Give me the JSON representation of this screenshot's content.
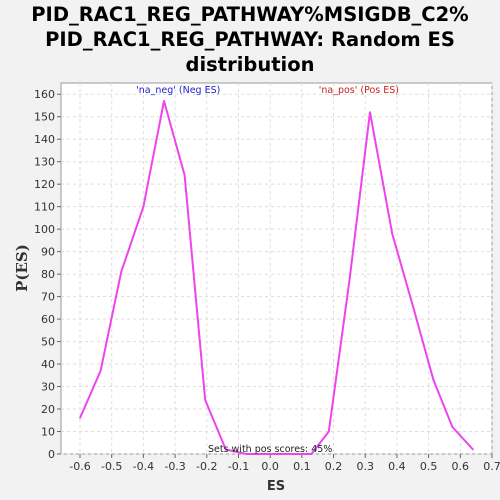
{
  "chart_data": {
    "type": "line",
    "title_lines": [
      "PID_RAC1_REG_PATHWAY%MSIGDB_C2%",
      "PID_RAC1_REG_PATHWAY: Random ES",
      "distribution"
    ],
    "xlabel": "ES",
    "ylabel": "P(ES)",
    "xlim": [
      -0.66,
      0.7
    ],
    "ylim": [
      0,
      165
    ],
    "x_ticks": [
      -0.6,
      -0.5,
      -0.4,
      -0.3,
      -0.2,
      -0.1,
      0.0,
      0.1,
      0.2,
      0.3,
      0.4,
      0.5,
      0.6,
      0.7
    ],
    "x_tick_labels": [
      "-0.6",
      "-0.5",
      "-0.4",
      "-0.3",
      "-0.2",
      "-0.1",
      "0.0",
      "0.1",
      "0.2",
      "0.3",
      "0.4",
      "0.5",
      "0.6",
      "0.7"
    ],
    "y_ticks": [
      0,
      10,
      20,
      30,
      40,
      50,
      60,
      70,
      80,
      90,
      100,
      110,
      120,
      130,
      140,
      150,
      160
    ],
    "grid": true,
    "line_color": "#ee44ee",
    "series": [
      {
        "x": [
          -0.6,
          -0.535,
          -0.47,
          -0.4,
          -0.335,
          -0.27,
          -0.205,
          -0.14,
          -0.075,
          0.0,
          0.08,
          0.13,
          0.185,
          0.25,
          0.315,
          0.385,
          0.45,
          0.515,
          0.575,
          0.64
        ],
        "values": [
          16,
          37,
          81,
          110,
          157,
          124,
          24,
          2,
          0,
          0,
          0,
          0,
          10,
          77,
          152,
          98,
          66,
          33,
          12,
          2
        ]
      }
    ],
    "annotations": [
      {
        "text": "'na_neg' (Neg ES)",
        "x": -0.29,
        "y": 160.5,
        "color": "#2222cc"
      },
      {
        "text": "'na_pos' (Pos ES)",
        "x": 0.28,
        "y": 160.5,
        "color": "#cc2222"
      },
      {
        "text": "Sets with pos scores: 45%",
        "x": 0.0,
        "y": 0.8,
        "color": "#222222"
      }
    ]
  }
}
